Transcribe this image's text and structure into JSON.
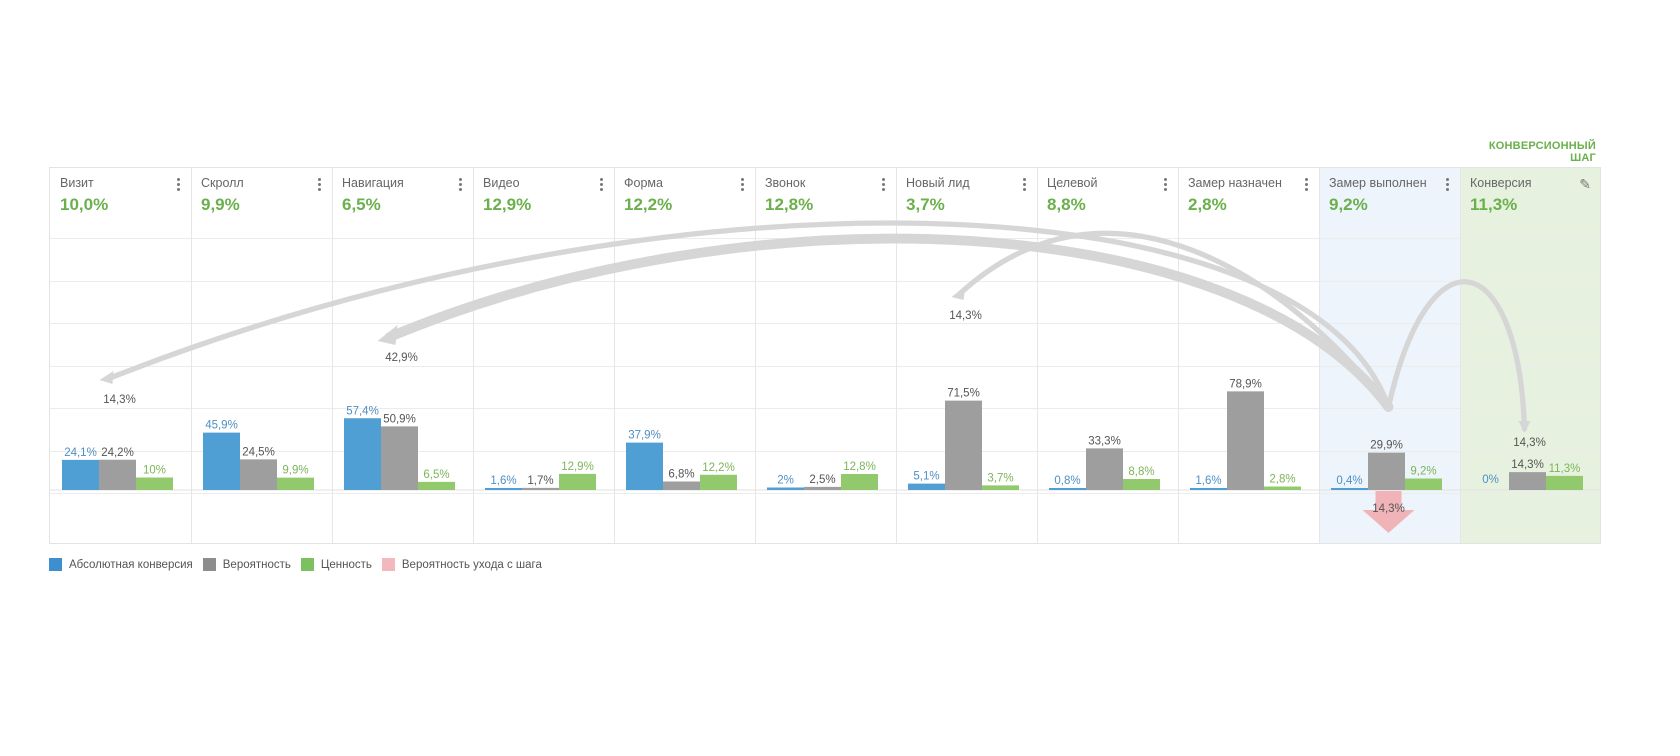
{
  "conversion_step_label": "КОНВЕРСИОННЫЙ ШАГ",
  "steps": [
    {
      "name": "Визит",
      "value": "10,0%"
    },
    {
      "name": "Скролл",
      "value": "9,9%"
    },
    {
      "name": "Навигация",
      "value": "6,5%"
    },
    {
      "name": "Видео",
      "value": "12,9%"
    },
    {
      "name": "Форма",
      "value": "12,2%"
    },
    {
      "name": "Звонок",
      "value": "12,8%"
    },
    {
      "name": "Новый лид",
      "value": "3,7%"
    },
    {
      "name": "Целевой",
      "value": "8,8%"
    },
    {
      "name": "Замер назначен",
      "value": "2,8%"
    },
    {
      "name": "Замер выполнен",
      "value": "9,2%"
    },
    {
      "name": "Конверсия",
      "value": "11,3%"
    }
  ],
  "colors": {
    "absolute": "#4f9fd4",
    "probability": "#9e9e9e",
    "value": "#93c96d",
    "exit": "#f0b4b8",
    "flow": "#d6d6d6",
    "accent": "#6ab04c"
  },
  "legend": [
    {
      "label": "Абсолютная конверсия",
      "color": "#3d8fd0"
    },
    {
      "label": "Вероятность",
      "color": "#8d8d8d"
    },
    {
      "label": "Ценность",
      "color": "#7cc160"
    },
    {
      "label": "Вероятность ухода с шага",
      "color": "#f3b8bd"
    }
  ],
  "chart_data": {
    "type": "bar",
    "categories": [
      "Визит",
      "Скролл",
      "Навигация",
      "Видео",
      "Форма",
      "Звонок",
      "Новый лид",
      "Целевой",
      "Замер назначен",
      "Замер выполнен",
      "Конверсия"
    ],
    "ylim": [
      0,
      100
    ],
    "series": [
      {
        "name": "Абсолютная конверсия",
        "values": [
          24.1,
          45.9,
          57.4,
          1.6,
          37.9,
          2,
          5.1,
          0.8,
          1.6,
          0.4,
          0
        ],
        "labels": [
          "24,1%",
          "45,9%",
          "57,4%",
          "1,6%",
          "37,9%",
          "2%",
          "5,1%",
          "0,8%",
          "1,6%",
          "0,4%",
          "0%"
        ]
      },
      {
        "name": "Вероятность",
        "values": [
          24.2,
          24.5,
          50.9,
          1.7,
          6.8,
          2.5,
          71.5,
          33.3,
          78.9,
          29.9,
          14.3
        ],
        "labels": [
          "24,2%",
          "24,5%",
          "50,9%",
          "1,7%",
          "6,8%",
          "2,5%",
          "71,5%",
          "33,3%",
          "78,9%",
          "29,9%",
          "14,3%"
        ]
      },
      {
        "name": "Ценность",
        "values": [
          10,
          9.9,
          6.5,
          12.9,
          12.2,
          12.8,
          3.7,
          8.8,
          2.8,
          9.2,
          11.3
        ],
        "labels": [
          "10%",
          "9,9%",
          "6,5%",
          "12,9%",
          "12,2%",
          "12,8%",
          "3,7%",
          "8,8%",
          "2,8%",
          "9,2%",
          "11,3%"
        ]
      }
    ],
    "exit": {
      "name": "Вероятность ухода с шага",
      "step": "Замер выполнен",
      "value": 14.3,
      "label": "14,3%"
    },
    "transitions": [
      {
        "from": "Замер выполнен",
        "to": "Визит",
        "value": 14.3,
        "label": "14,3%"
      },
      {
        "from": "Замер выполнен",
        "to": "Навигация",
        "value": 42.9,
        "label": "42,9%"
      },
      {
        "from": "Замер выполнен",
        "to": "Новый лид",
        "value": 14.3,
        "label": "14,3%"
      },
      {
        "from": "Замер выполнен",
        "to": "Конверсия",
        "value": 14.3,
        "label": "14,3%"
      }
    ],
    "grid": true,
    "legend_position": "bottom-left"
  }
}
